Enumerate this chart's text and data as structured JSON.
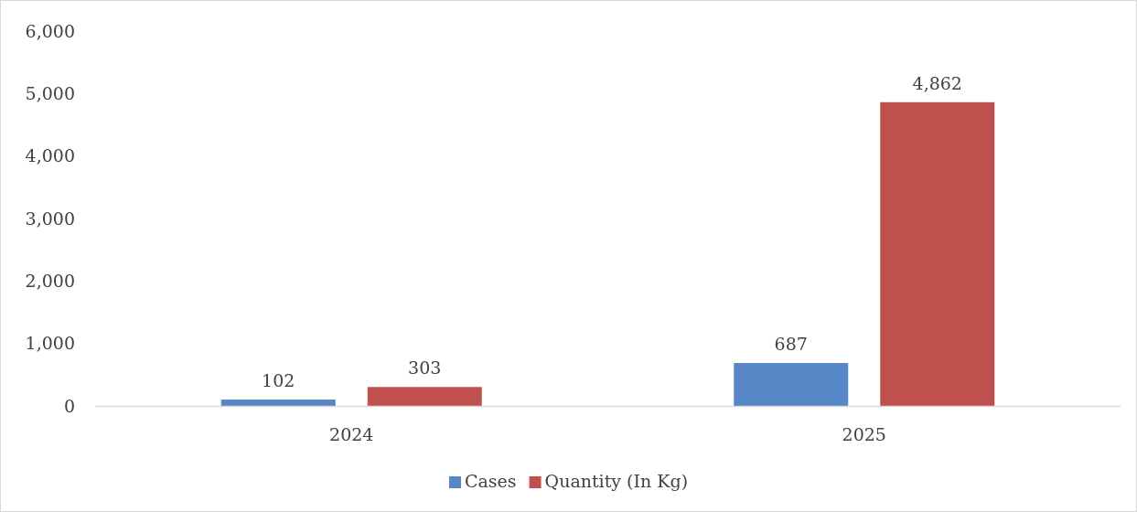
{
  "chart_data": {
    "type": "bar",
    "categories": [
      "2024",
      "2025"
    ],
    "series": [
      {
        "name": "Cases",
        "color": "#5686c6",
        "values": [
          102,
          687
        ],
        "value_labels": [
          "102",
          "687"
        ]
      },
      {
        "name": "Quantity (In Kg)",
        "color": "#c0504d",
        "values": [
          303,
          4862
        ],
        "value_labels": [
          "303",
          "4,862"
        ]
      }
    ],
    "ylim": [
      0,
      6000
    ],
    "yticks": [
      {
        "value": 0,
        "label": "0"
      },
      {
        "value": 1000,
        "label": "1,000"
      },
      {
        "value": 2000,
        "label": "2,000"
      },
      {
        "value": 3000,
        "label": "3,000"
      },
      {
        "value": 4000,
        "label": "4,000"
      },
      {
        "value": 5000,
        "label": "5,000"
      },
      {
        "value": 6000,
        "label": "6,000"
      }
    ],
    "legend": "bottom",
    "grid": false
  }
}
